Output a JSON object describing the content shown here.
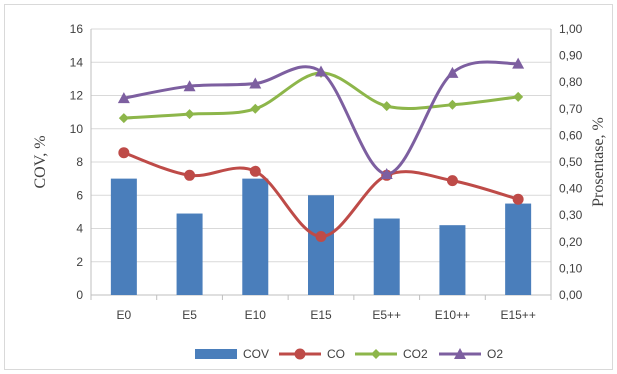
{
  "chart_data": {
    "type": "bar+line",
    "categories": [
      "E0",
      "E5",
      "E10",
      "E15",
      "E5++",
      "E10++",
      "E15++"
    ],
    "series": [
      {
        "name": "COV",
        "type": "bar",
        "axis": "left",
        "color": "#4a7ebb",
        "values": [
          7.0,
          4.9,
          7.0,
          6.0,
          4.6,
          4.2,
          5.5
        ]
      },
      {
        "name": "CO",
        "type": "line",
        "axis": "right",
        "color": "#be4b48",
        "marker": "circle",
        "values": [
          0.535,
          0.45,
          0.465,
          0.22,
          0.45,
          0.43,
          0.36
        ]
      },
      {
        "name": "CO2",
        "type": "line",
        "axis": "right",
        "color": "#8db64a",
        "marker": "diamond",
        "values": [
          0.665,
          0.68,
          0.7,
          0.835,
          0.71,
          0.715,
          0.745
        ]
      },
      {
        "name": "O2",
        "type": "line",
        "axis": "right",
        "color": "#7d5fa0",
        "marker": "triangle",
        "values": [
          0.74,
          0.785,
          0.795,
          0.84,
          0.455,
          0.835,
          0.87
        ]
      }
    ],
    "ylabel": "COV, %",
    "y2label": "Prosentase, %",
    "ylim": [
      0,
      16
    ],
    "y2lim": [
      0,
      1
    ],
    "yticks": [
      "0",
      "2",
      "4",
      "6",
      "8",
      "10",
      "12",
      "14",
      "16"
    ],
    "y2ticks": [
      "0,00",
      "0,10",
      "0,20",
      "0,30",
      "0,40",
      "0,50",
      "0,60",
      "0,70",
      "0,80",
      "0,90",
      "1,00"
    ],
    "grid": true,
    "legend": "bottom"
  }
}
